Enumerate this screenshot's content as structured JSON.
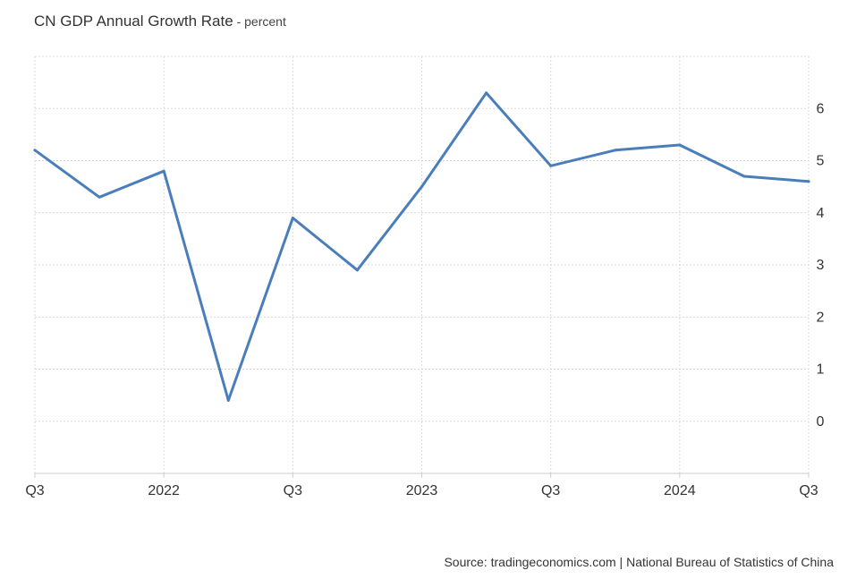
{
  "header": {
    "title": "CN GDP Annual Growth Rate",
    "separator": " - ",
    "unit": "percent"
  },
  "footer": {
    "source": "Source: tradingeconomics.com | National Bureau of Statistics of China"
  },
  "colors": {
    "line": "#4a7ebb",
    "grid": "#d9d9d9",
    "axis_text": "#333333"
  },
  "chart_data": {
    "type": "line",
    "title": "CN GDP Annual Growth Rate",
    "ylabel": "percent",
    "xlabel": "",
    "x": [
      "2021-Q3",
      "2021-Q4",
      "2022-Q1",
      "2022-Q2",
      "2022-Q3",
      "2022-Q4",
      "2023-Q1",
      "2023-Q2",
      "2023-Q3",
      "2023-Q4",
      "2024-Q1",
      "2024-Q2",
      "2024-Q3"
    ],
    "x_tick_labels": [
      "Q3",
      "2022",
      "Q3",
      "2023",
      "Q3",
      "2024",
      "Q3"
    ],
    "series": [
      {
        "values": [
          5.2,
          4.3,
          4.8,
          0.4,
          3.9,
          2.9,
          4.5,
          6.3,
          4.9,
          5.2,
          5.3,
          4.7,
          4.6
        ]
      }
    ],
    "y_ticks": [
      0,
      1,
      2,
      3,
      4,
      5,
      6
    ],
    "ylim": [
      -1,
      7
    ],
    "grid": true,
    "y_axis_side": "right"
  }
}
